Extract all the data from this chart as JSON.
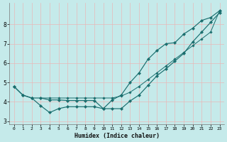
{
  "xlabel": "Humidex (Indice chaleur)",
  "background_color": "#c5eaea",
  "grid_color": "#d4eded",
  "line_color": "#1a6e6e",
  "xlim": [
    -0.5,
    23.5
  ],
  "ylim": [
    2.85,
    9.1
  ],
  "xticks": [
    0,
    1,
    2,
    3,
    4,
    5,
    6,
    7,
    8,
    9,
    10,
    11,
    12,
    13,
    14,
    15,
    16,
    17,
    18,
    19,
    20,
    21,
    22,
    23
  ],
  "yticks": [
    3,
    4,
    5,
    6,
    7,
    8
  ],
  "line_A_x": [
    3,
    4,
    5,
    6,
    7,
    8,
    9,
    10,
    11,
    12,
    13,
    14,
    15,
    16,
    17,
    18,
    19,
    20,
    21,
    22,
    23
  ],
  "line_A_y": [
    4.2,
    4.2,
    4.2,
    4.2,
    4.2,
    4.2,
    4.2,
    4.2,
    4.2,
    4.3,
    4.5,
    4.8,
    5.15,
    5.5,
    5.85,
    6.2,
    6.55,
    6.9,
    7.25,
    7.6,
    8.7
  ],
  "line_B_x": [
    0,
    1,
    2,
    3,
    4,
    5,
    6,
    7,
    8,
    9,
    10,
    11,
    12,
    13,
    14,
    15,
    16,
    17,
    18,
    19,
    20,
    21,
    22,
    23
  ],
  "line_B_y": [
    4.8,
    4.35,
    4.2,
    3.8,
    3.45,
    3.65,
    3.75,
    3.75,
    3.75,
    3.75,
    3.65,
    4.1,
    4.35,
    5.0,
    5.5,
    6.2,
    6.65,
    7.0,
    7.05,
    7.5,
    7.8,
    8.2,
    8.35,
    8.7
  ],
  "line_C_x": [
    0,
    1,
    2,
    3,
    4,
    5,
    6,
    7,
    8,
    9,
    10,
    11,
    12,
    13,
    14,
    15,
    16,
    17,
    18,
    19,
    20,
    21,
    22,
    23
  ],
  "line_C_y": [
    4.8,
    4.35,
    4.2,
    4.2,
    4.1,
    4.1,
    4.07,
    4.07,
    4.07,
    4.07,
    3.65,
    3.65,
    3.65,
    4.05,
    4.35,
    4.85,
    5.35,
    5.7,
    6.1,
    6.5,
    7.1,
    7.6,
    8.1,
    8.6
  ]
}
